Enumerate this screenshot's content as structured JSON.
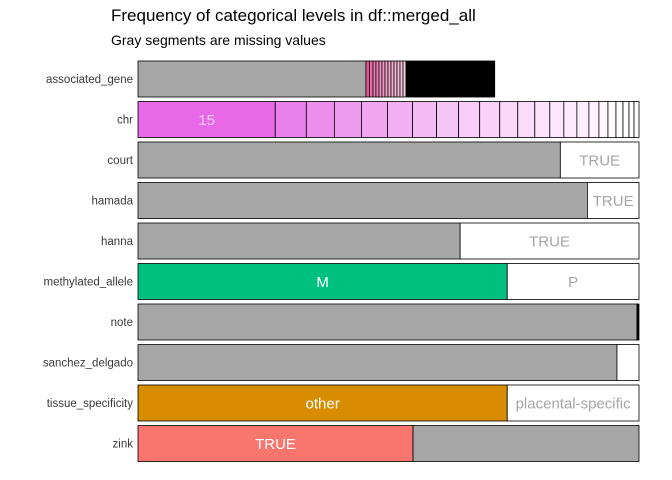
{
  "chart_data": {
    "type": "bar",
    "orientation": "horizontal",
    "stacked": true,
    "normalized": true,
    "title": "Frequency of categorical levels in df::merged_all",
    "subtitle": "Gray segments are missing values",
    "missing_color": "#a6a6a6",
    "variables": [
      {
        "name": "associated_gene",
        "segments": [
          {
            "missing": true,
            "value": 0.455
          },
          {
            "value": 0.007,
            "color": "#e8519a"
          },
          {
            "value": 0.007,
            "color": "#ee6aaa"
          },
          {
            "value": 0.006,
            "color": "#f078b2"
          },
          {
            "value": 0.006,
            "color": "#f285ba"
          },
          {
            "value": 0.006,
            "color": "#f38fc0"
          },
          {
            "value": 0.006,
            "color": "#f49ac6"
          },
          {
            "value": 0.006,
            "color": "#f5a2cb"
          },
          {
            "value": 0.006,
            "color": "#f6a9cf"
          },
          {
            "value": 0.006,
            "color": "#f7b1d3"
          },
          {
            "value": 0.006,
            "color": "#f8b8d7"
          },
          {
            "value": 0.006,
            "color": "#f9bfdb"
          },
          {
            "value": 0.006,
            "color": "#fac6df"
          },
          {
            "value": 0.006,
            "color": "#fbcde3"
          },
          {
            "value": 0.0059,
            "color": "#000000"
          },
          {
            "value": 0.0059,
            "color": "#000000"
          },
          {
            "value": 0.0059,
            "color": "#000000"
          },
          {
            "value": 0.0059,
            "color": "#000000"
          },
          {
            "value": 0.0059,
            "color": "#000000"
          },
          {
            "value": 0.0059,
            "color": "#000000"
          },
          {
            "value": 0.0059,
            "color": "#000000"
          },
          {
            "value": 0.0059,
            "color": "#000000"
          },
          {
            "value": 0.0059,
            "color": "#000000"
          },
          {
            "value": 0.0059,
            "color": "#000000"
          },
          {
            "value": 0.0059,
            "color": "#000000"
          },
          {
            "value": 0.0059,
            "color": "#000000"
          },
          {
            "value": 0.0059,
            "color": "#000000"
          },
          {
            "value": 0.0059,
            "color": "#000000"
          },
          {
            "value": 0.0059,
            "color": "#000000"
          },
          {
            "value": 0.0059,
            "color": "#000000"
          },
          {
            "value": 0.0059,
            "color": "#000000"
          },
          {
            "value": 0.0059,
            "color": "#000000"
          },
          {
            "value": 0.0059,
            "color": "#000000"
          },
          {
            "value": 0.0059,
            "color": "#000000"
          },
          {
            "value": 0.0059,
            "color": "#000000"
          },
          {
            "value": 0.0059,
            "color": "#000000"
          },
          {
            "value": 0.0059,
            "color": "#000000"
          },
          {
            "value": 0.0059,
            "color": "#000000"
          },
          {
            "value": 0.0059,
            "color": "#000000"
          },
          {
            "value": 0.0059,
            "color": "#000000"
          },
          {
            "value": 0.0059,
            "color": "#000000"
          },
          {
            "value": 0.0059,
            "color": "#000000"
          },
          {
            "value": 0.0059,
            "color": "#000000"
          },
          {
            "value": 0.0059,
            "color": "#000000"
          }
        ]
      },
      {
        "name": "chr",
        "segments": [
          {
            "level": "15",
            "value": 0.274,
            "color": "#e769e8",
            "text_color": "#f4cef4"
          },
          {
            "value": 0.062,
            "color": "#e882ea"
          },
          {
            "value": 0.056,
            "color": "#eb8eec"
          },
          {
            "value": 0.054,
            "color": "#ee9cef"
          },
          {
            "value": 0.052,
            "color": "#f0a6f1"
          },
          {
            "value": 0.05,
            "color": "#f2b0f3"
          },
          {
            "value": 0.048,
            "color": "#f4baf4"
          },
          {
            "value": 0.044,
            "color": "#f6c4f6"
          },
          {
            "value": 0.042,
            "color": "#f8cbf8"
          },
          {
            "value": 0.04,
            "color": "#f9d1f9"
          },
          {
            "value": 0.036,
            "color": "#fad6fa"
          },
          {
            "value": 0.034,
            "color": "#fbdbfb"
          },
          {
            "value": 0.03,
            "color": "#fce0fc"
          },
          {
            "value": 0.028,
            "color": "#fde5fd"
          },
          {
            "value": 0.026,
            "color": "#fdeafd"
          },
          {
            "value": 0.024,
            "color": "#feeefe"
          },
          {
            "value": 0.02,
            "color": "#fef2fe"
          },
          {
            "value": 0.018,
            "color": "#fff6ff"
          },
          {
            "value": 0.016,
            "color": "#fffafe"
          },
          {
            "value": 0.014,
            "color": "#ffffff"
          },
          {
            "value": 0.012,
            "color": "#ffffff"
          },
          {
            "value": 0.01,
            "color": "#ffffff"
          },
          {
            "value": 0.01,
            "color": "#ffffff"
          }
        ]
      },
      {
        "name": "court",
        "segments": [
          {
            "missing": true,
            "value": 0.843
          },
          {
            "level": "TRUE",
            "value": 0.157,
            "color": "#ffffff",
            "text_color": "#a6a6a6"
          }
        ]
      },
      {
        "name": "hamada",
        "segments": [
          {
            "missing": true,
            "value": 0.897
          },
          {
            "level": "TRUE",
            "value": 0.103,
            "color": "#ffffff",
            "text_color": "#a6a6a6"
          }
        ]
      },
      {
        "name": "hanna",
        "segments": [
          {
            "missing": true,
            "value": 0.643
          },
          {
            "level": "TRUE",
            "value": 0.357,
            "color": "#ffffff",
            "text_color": "#a6a6a6"
          }
        ]
      },
      {
        "name": "methylated_allele",
        "segments": [
          {
            "level": "M",
            "value": 0.737,
            "color": "#00c080",
            "text_color": "#ffffff"
          },
          {
            "level": "P",
            "value": 0.263,
            "color": "#ffffff",
            "text_color": "#a6a6a6"
          }
        ]
      },
      {
        "name": "note",
        "segments": [
          {
            "missing": true,
            "value": 0.996
          },
          {
            "value": 0.004,
            "color": "#000000"
          }
        ]
      },
      {
        "name": "sanchez_delgado",
        "segments": [
          {
            "missing": true,
            "value": 0.956
          },
          {
            "value": 0.044,
            "color": "#ffffff"
          }
        ]
      },
      {
        "name": "tissue_specificity",
        "segments": [
          {
            "level": "other",
            "value": 0.737,
            "color": "#d88c00",
            "text_color": "#ffffff"
          },
          {
            "level": "placental-specific",
            "value": 0.263,
            "color": "#ffffff",
            "text_color": "#a6a6a6"
          }
        ]
      },
      {
        "name": "zink",
        "segments": [
          {
            "level": "TRUE",
            "value": 0.549,
            "color": "#f8766d",
            "text_color": "#ffffff"
          },
          {
            "missing": true,
            "value": 0.451
          }
        ]
      }
    ]
  }
}
